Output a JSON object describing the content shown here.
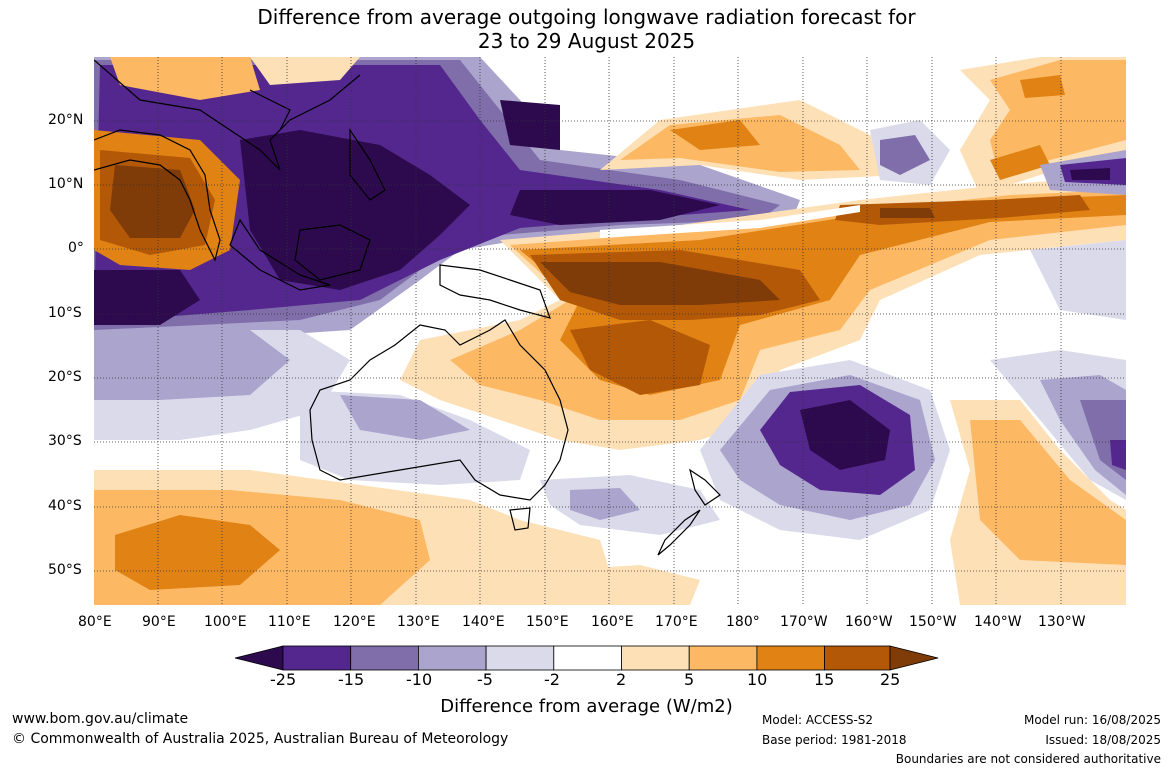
{
  "title": {
    "line1": "Difference from average outgoing longwave radiation forecast for",
    "line2": "23 to 29 August 2025"
  },
  "map": {
    "lon_labels": [
      "80°E",
      "90°E",
      "100°E",
      "110°E",
      "120°E",
      "130°E",
      "140°E",
      "150°E",
      "160°E",
      "170°E",
      "180°",
      "170°W",
      "160°W",
      "150°W",
      "140°W",
      "130°W"
    ],
    "lat_labels": [
      "20°N",
      "10°N",
      "0°",
      "10°S",
      "20°S",
      "30°S",
      "40°S",
      "50°S"
    ]
  },
  "colorbar": {
    "ticks": [
      "-25",
      "-15",
      "-10",
      "-5",
      "-2",
      "2",
      "5",
      "10",
      "15",
      "25"
    ],
    "colors": [
      "#2d0a4e",
      "#54278f",
      "#7f6eaa",
      "#aba4cd",
      "#dadaeb",
      "#ffffff",
      "#fee0b6",
      "#fdb863",
      "#e08214",
      "#b35806",
      "#7f3b08"
    ],
    "label": "Difference from average (W/m2)"
  },
  "footer": {
    "url": "www.bom.gov.au/climate",
    "copyright": "© Commonwealth of Australia 2025, Australian Bureau of Meteorology",
    "model": "Model: ACCESS-S2",
    "base_period": "Base period: 1981-2018",
    "model_run": "Model run: 16/08/2025",
    "issued": "Issued: 18/08/2025",
    "disclaimer": "Boundaries are not considered authoritative"
  }
}
